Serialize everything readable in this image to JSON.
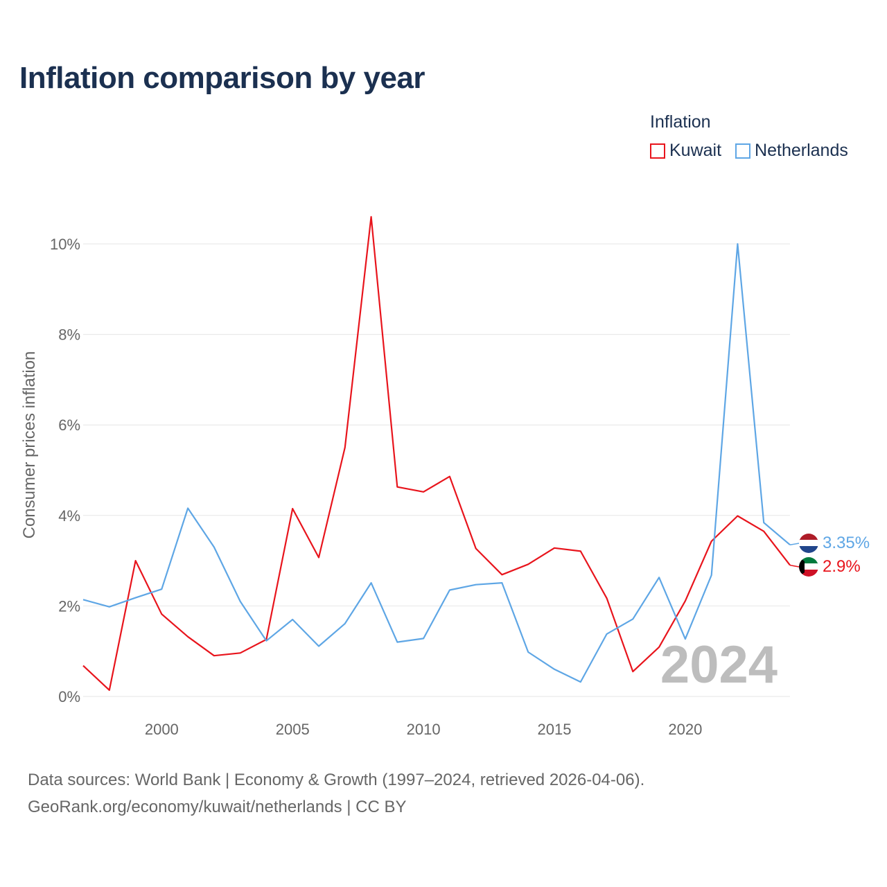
{
  "title": "Inflation comparison by year",
  "legend": {
    "title": "Inflation",
    "items": [
      {
        "label": "Kuwait",
        "color": "#e8141c"
      },
      {
        "label": "Netherlands",
        "color": "#5ea6e5"
      }
    ]
  },
  "chart_data": {
    "type": "line",
    "title": "Inflation comparison by year",
    "xlabel": "",
    "ylabel": "Consumer prices inflation",
    "x": [
      1997,
      1998,
      1999,
      2000,
      2001,
      2002,
      2003,
      2004,
      2005,
      2006,
      2007,
      2008,
      2009,
      2010,
      2011,
      2012,
      2013,
      2014,
      2015,
      2016,
      2017,
      2018,
      2019,
      2020,
      2021,
      2022,
      2023,
      2024
    ],
    "xlim": [
      1997,
      2024
    ],
    "ylim": [
      0,
      10
    ],
    "x_ticks": [
      2000,
      2005,
      2010,
      2015,
      2020
    ],
    "y_ticks": [
      0,
      2,
      4,
      6,
      8,
      10
    ],
    "y_tick_labels": [
      "0%",
      "2%",
      "4%",
      "6%",
      "8%",
      "10%"
    ],
    "grid": true,
    "year_watermark": "2024",
    "series": [
      {
        "name": "Kuwait",
        "color": "#e8141c",
        "end_label": "2.9%",
        "values": [
          0.68,
          0.14,
          3.0,
          1.82,
          1.32,
          0.9,
          0.96,
          1.26,
          4.15,
          3.07,
          5.5,
          10.6,
          4.63,
          4.52,
          4.86,
          3.27,
          2.69,
          2.92,
          3.28,
          3.21,
          2.17,
          0.55,
          1.09,
          2.11,
          3.43,
          3.99,
          3.65,
          2.9
        ]
      },
      {
        "name": "Netherlands",
        "color": "#5ea6e5",
        "end_label": "3.35%",
        "values": [
          2.14,
          1.98,
          2.18,
          2.37,
          4.16,
          3.3,
          2.1,
          1.23,
          1.7,
          1.11,
          1.61,
          2.51,
          1.2,
          1.28,
          2.35,
          2.47,
          2.51,
          0.98,
          0.6,
          0.32,
          1.38,
          1.71,
          2.63,
          1.27,
          2.68,
          10.0,
          3.84,
          3.35
        ]
      }
    ]
  },
  "footer": {
    "line1": "Data sources: World Bank | Economy & Growth (1997–2024, retrieved 2026-04-06).",
    "line2": "GeoRank.org/economy/kuwait/netherlands | CC BY"
  }
}
